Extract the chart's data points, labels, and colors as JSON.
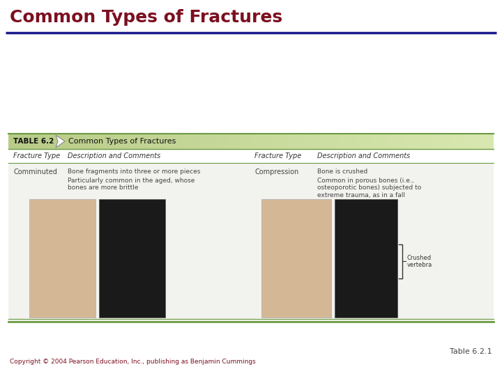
{
  "title": "Common Types of Fractures",
  "title_color": "#7B1020",
  "title_fontsize": 18,
  "bg_color": "#ffffff",
  "header_line_color": "#1a1a8c",
  "table_header_bg_left": "#b8cc88",
  "table_header_bg_right": "#d8e8b0",
  "table_header_text": "Common Types of Fractures",
  "table_label": "TABLE 6.2",
  "col_headers": [
    "Fracture Type",
    "Description and Comments",
    "Fracture Type",
    "Description and Comments"
  ],
  "fracture_types": [
    "Comminuted",
    "Compression"
  ],
  "descriptions_left": [
    "Bone fragments into three or more pieces",
    "Particularly common in the aged, whose\nbones are more brittle"
  ],
  "descriptions_right": [
    "Bone is crushed",
    "Common in porous bones (i.e.,\nosteoporotic bones) subjected to\nextreme trauma, as in a fall"
  ],
  "annotation": "Crushed\nvertebra",
  "table_border_color": "#6a9a40",
  "col_header_color": "#333333",
  "fracture_type_color": "#444444",
  "desc_color": "#444444",
  "copyright_text": "Copyright © 2004 Pearson Education, Inc., publishing as Benjamin Cummings",
  "copyright_color": "#7B1020",
  "copyright_fontsize": 6.5,
  "table_ref": "Table 6.2.1",
  "table_ref_color": "#444444",
  "table_ref_fontsize": 8,
  "inner_content_bg": "#f2f2ee",
  "white_area_bg": "#ffffff",
  "img_illus_color": "#d4b896",
  "img_xray_color": "#1a1a1a"
}
